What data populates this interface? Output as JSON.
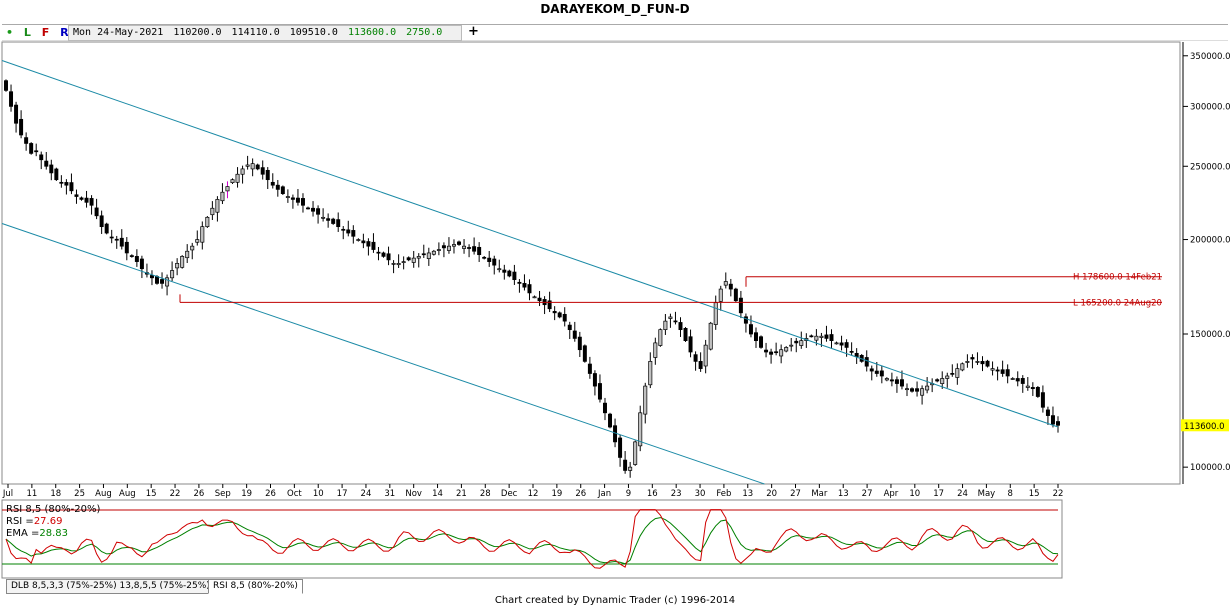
{
  "title": "DARAYEKOM_D_FUN-D",
  "toolbar": {
    "dot": "•",
    "btn_l": "L",
    "btn_f": "F",
    "btn_r": "R",
    "date": "Mon 24-May-2021",
    "open": "110200.0",
    "high": "114110.0",
    "low": "109510.0",
    "close": "113600.0",
    "change": "2750.0",
    "add": "+"
  },
  "colors": {
    "channel": "#1b8aa6",
    "level": "#c00000",
    "rsi": "#d00000",
    "ema": "#008000",
    "candle_up": "#c0c0c0",
    "candle_down": "#000000",
    "highlight_bar": "#cc00cc",
    "last_price_bg": "#ffff00"
  },
  "chart_data": {
    "type": "candlestick",
    "title": "DARAYEKOM_D_FUN-D",
    "y_ticks": [
      "350000.0",
      "300000.0",
      "250000.0",
      "200000.0",
      "150000.0",
      "100000.0"
    ],
    "y_tick_values": [
      350000,
      300000,
      250000,
      200000,
      150000,
      100000
    ],
    "ylim": [
      95000,
      365000
    ],
    "y_scale": "log",
    "last_price_label": "113600.0",
    "last_price": 113600,
    "x_ticks": [
      "Jul",
      "11",
      "18",
      "25",
      "Aug",
      "Aug",
      "15",
      "22",
      "26",
      "Sep",
      "19",
      "26",
      "Oct",
      "10",
      "17",
      "24",
      "31",
      "Nov",
      "14",
      "21",
      "28",
      "Dec",
      "12",
      "19",
      "26",
      "Jan",
      "9",
      "16",
      "23",
      "30",
      "Feb",
      "13",
      "20",
      "27",
      "Mar",
      "13",
      "27",
      "Apr",
      "10",
      "17",
      "24",
      "May",
      "8",
      "15",
      "22"
    ],
    "closes": [
      315000,
      300000,
      285000,
      275000,
      268000,
      260000,
      262000,
      255000,
      250000,
      245000,
      240000,
      238000,
      236000,
      232000,
      228000,
      226000,
      224000,
      222000,
      215000,
      208000,
      204000,
      201000,
      200000,
      196000,
      192000,
      190000,
      187000,
      183000,
      180000,
      178000,
      175000,
      175000,
      178000,
      182000,
      186000,
      190000,
      193000,
      196000,
      200000,
      208000,
      214000,
      220000,
      226000,
      231000,
      235000,
      240000,
      244000,
      248000,
      251000,
      252000,
      248000,
      244000,
      240000,
      236000,
      233000,
      230000,
      228000,
      226000,
      224000,
      222000,
      220000,
      218000,
      216000,
      214000,
      212000,
      210000,
      208000,
      206000,
      204000,
      202000,
      200000,
      198000,
      196000,
      194000,
      192000,
      190000,
      188000,
      186000,
      186000,
      187000,
      188000,
      189000,
      190000,
      191000,
      192000,
      193000,
      194000,
      195000,
      196000,
      197000,
      197000,
      196000,
      195000,
      193000,
      191000,
      189000,
      187000,
      185000,
      183000,
      181000,
      179000,
      177000,
      175000,
      173000,
      170000,
      168000,
      166000,
      164000,
      162000,
      160000,
      158000,
      156000,
      152000,
      148000,
      143000,
      138000,
      133000,
      128000,
      123000,
      118000,
      113000,
      108000,
      103000,
      99000,
      100000,
      108000,
      118000,
      128000,
      138000,
      146000,
      152000,
      156000,
      158000,
      156000,
      152000,
      147000,
      142000,
      138000,
      135000,
      145000,
      155000,
      165000,
      172000,
      176000,
      172000,
      166000,
      160000,
      155000,
      150000,
      147000,
      144000,
      142000,
      141000,
      142000,
      143000,
      144000,
      145000,
      146000,
      147000,
      148000,
      149000,
      149000,
      149000,
      148000,
      147000,
      146000,
      145000,
      144000,
      142000,
      140000,
      138000,
      136000,
      134000,
      133000,
      132000,
      131000,
      130000,
      129000,
      128000,
      127000,
      126000,
      126000,
      127000,
      128000,
      129000,
      130000,
      131000,
      132000,
      133000,
      135000,
      137000,
      138000,
      139000,
      138000,
      137000,
      136000,
      135000,
      134000,
      133000,
      132000,
      131000,
      130000,
      129000,
      128000,
      127000,
      124000,
      120000,
      117000,
      114000,
      113600
    ]
  },
  "channel": {
    "upper": {
      "start": 345000,
      "end": 113000
    },
    "lower": {
      "start": 210000,
      "end": 70000
    }
  },
  "levels": [
    {
      "label": "H 178600.0 14Feb21",
      "value": 178600
    },
    {
      "label": "L 165200.0 24Aug20",
      "value": 165200
    }
  ],
  "indicator": {
    "name": "RSI 8,5 (80%-20%)",
    "rsi_label": "RSI =",
    "rsi_value": "27.69",
    "ema_label": "EMA =",
    "ema_value": "28.83",
    "upper_band": 80,
    "lower_band": 20
  },
  "tabs": [
    "DLB 8,5,3,3 (75%-25%) 13,8,5,5 (75%-25%)",
    "RSI 8,5 (80%-20%)"
  ],
  "footer": "Chart created by Dynamic Trader  (c) 1996-2014"
}
